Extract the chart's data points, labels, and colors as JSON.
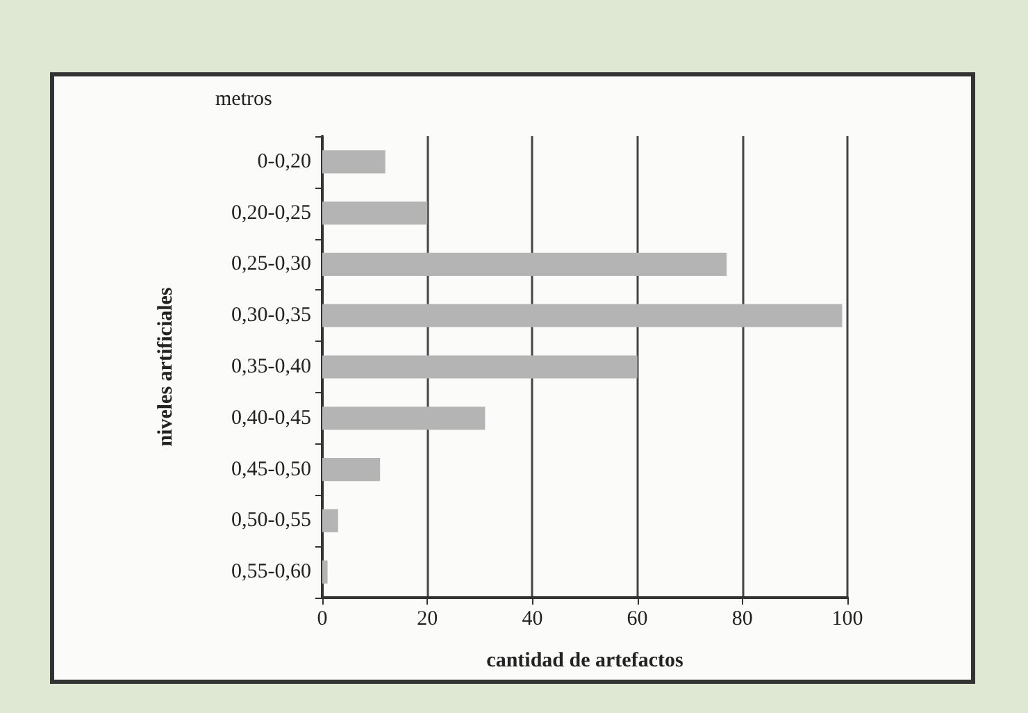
{
  "chart_data": {
    "type": "bar",
    "orientation": "horizontal",
    "categories": [
      "0-0,20",
      "0,20-0,25",
      "0,25-0,30",
      "0,30-0,35",
      "0,35-0,40",
      "0,40-0,45",
      "0,45-0,50",
      "0,50-0,55",
      "0,55-0,60"
    ],
    "values": [
      12,
      20,
      77,
      99,
      60,
      31,
      11,
      3,
      1
    ],
    "color": "#b4b4b4",
    "xlim": [
      0,
      100
    ],
    "xticks": [
      0,
      20,
      40,
      60,
      80,
      100
    ],
    "xlabel": "cantidad de artefactos",
    "ylabel": "niveles artificiales",
    "annotations": [
      "metros"
    ],
    "grid": "x"
  }
}
